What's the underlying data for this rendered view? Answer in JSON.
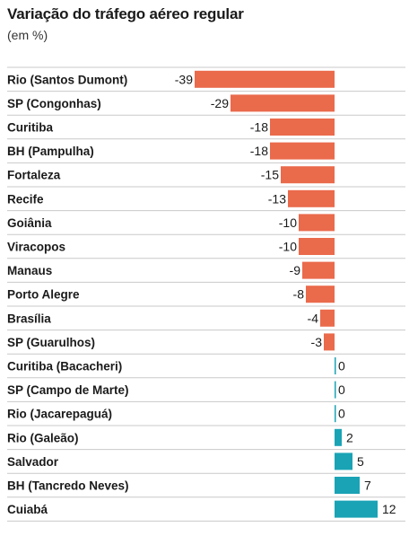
{
  "header": {
    "title": "Variação do tráfego aéreo regular",
    "subtitle": "(em %)"
  },
  "colors": {
    "negative": "#ea6a4c",
    "positive": "#1aa3b5",
    "row_divider": "#c9c9c9"
  },
  "chart_data": {
    "type": "bar",
    "orientation": "horizontal",
    "title": "Variação do tráfego aéreo regular",
    "subtitle": "(em %)",
    "xlim": [
      -39,
      12
    ],
    "grid": false,
    "categories": [
      "Rio (Santos Dumont)",
      "SP (Congonhas)",
      "Curitiba",
      "BH (Pampulha)",
      "Fortaleza",
      "Recife",
      "Goiânia",
      "Viracopos",
      "Manaus",
      "Porto Alegre",
      "Brasília",
      "SP (Guarulhos)",
      "Curitiba (Bacacheri)",
      "SP (Campo de Marte)",
      "Rio (Jacarepaguá)",
      "Rio (Galeão)",
      "Salvador",
      "BH (Tancredo Neves)",
      "Cuiabá"
    ],
    "values": [
      -39,
      -29,
      -18,
      -18,
      -15,
      -13,
      -10,
      -10,
      -9,
      -8,
      -4,
      -3,
      0,
      0,
      0,
      2,
      5,
      7,
      12
    ]
  }
}
